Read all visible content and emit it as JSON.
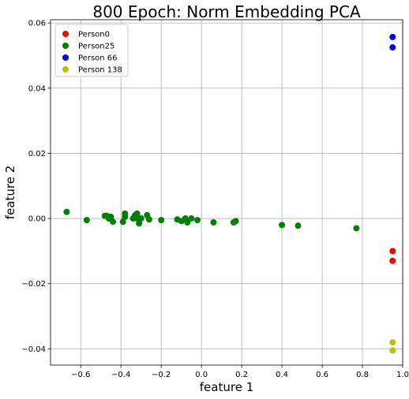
{
  "chart_data": {
    "type": "scatter",
    "title": "800 Epoch: Norm Embedding PCA",
    "xlabel": "feature 1",
    "ylabel": "feature 2",
    "xlim": [
      -0.75,
      1.0
    ],
    "ylim": [
      -0.045,
      0.061
    ],
    "xticks": [
      -0.6,
      -0.4,
      -0.2,
      0.0,
      0.2,
      0.4,
      0.6,
      0.8,
      1.0
    ],
    "xtick_labels": [
      "−0.6",
      "−0.4",
      "−0.2",
      "0.0",
      "0.2",
      "0.4",
      "0.6",
      "0.8",
      "1.0"
    ],
    "yticks": [
      -0.04,
      -0.02,
      0.0,
      0.02,
      0.04,
      0.06
    ],
    "ytick_labels": [
      "−0.04",
      "−0.02",
      "0.00",
      "0.02",
      "0.04",
      "0.06"
    ],
    "grid": true,
    "legend_position": "top-left",
    "series": [
      {
        "name": "Person0",
        "color": "#ff0000",
        "points": [
          [
            0.95,
            -0.01
          ],
          [
            0.95,
            -0.013
          ]
        ]
      },
      {
        "name": "Person25",
        "color": "#008000",
        "points": [
          [
            -0.67,
            0.002
          ],
          [
            -0.57,
            -0.0005
          ],
          [
            -0.48,
            0.0008
          ],
          [
            -0.47,
            0.0008
          ],
          [
            -0.46,
            0.0
          ],
          [
            -0.45,
            0.0005
          ],
          [
            -0.44,
            -0.001
          ],
          [
            -0.39,
            -0.001
          ],
          [
            -0.38,
            0.0015
          ],
          [
            -0.38,
            0.0005
          ],
          [
            -0.34,
            0.0
          ],
          [
            -0.33,
            0.001
          ],
          [
            -0.32,
            0.0015
          ],
          [
            -0.32,
            0.0
          ],
          [
            -0.31,
            -0.0015
          ],
          [
            -0.3,
            0.0
          ],
          [
            -0.27,
            0.001
          ],
          [
            -0.26,
            -0.0003
          ],
          [
            -0.2,
            -0.0005
          ],
          [
            -0.12,
            -0.0003
          ],
          [
            -0.1,
            -0.0008
          ],
          [
            -0.08,
            0.0
          ],
          [
            -0.07,
            -0.0012
          ],
          [
            -0.05,
            0.0
          ],
          [
            -0.02,
            -0.0005
          ],
          [
            0.06,
            -0.0012
          ],
          [
            0.16,
            -0.0012
          ],
          [
            0.17,
            -0.0008
          ],
          [
            0.4,
            -0.002
          ],
          [
            0.48,
            -0.0022
          ],
          [
            0.77,
            -0.003
          ]
        ]
      },
      {
        "name": "Person 66",
        "color": "#0000ff",
        "points": [
          [
            0.95,
            0.0557
          ],
          [
            0.95,
            0.0525
          ]
        ]
      },
      {
        "name": "Person 138",
        "color": "#bfbf00",
        "points": [
          [
            0.95,
            -0.038
          ],
          [
            0.95,
            -0.0405
          ]
        ]
      }
    ]
  }
}
